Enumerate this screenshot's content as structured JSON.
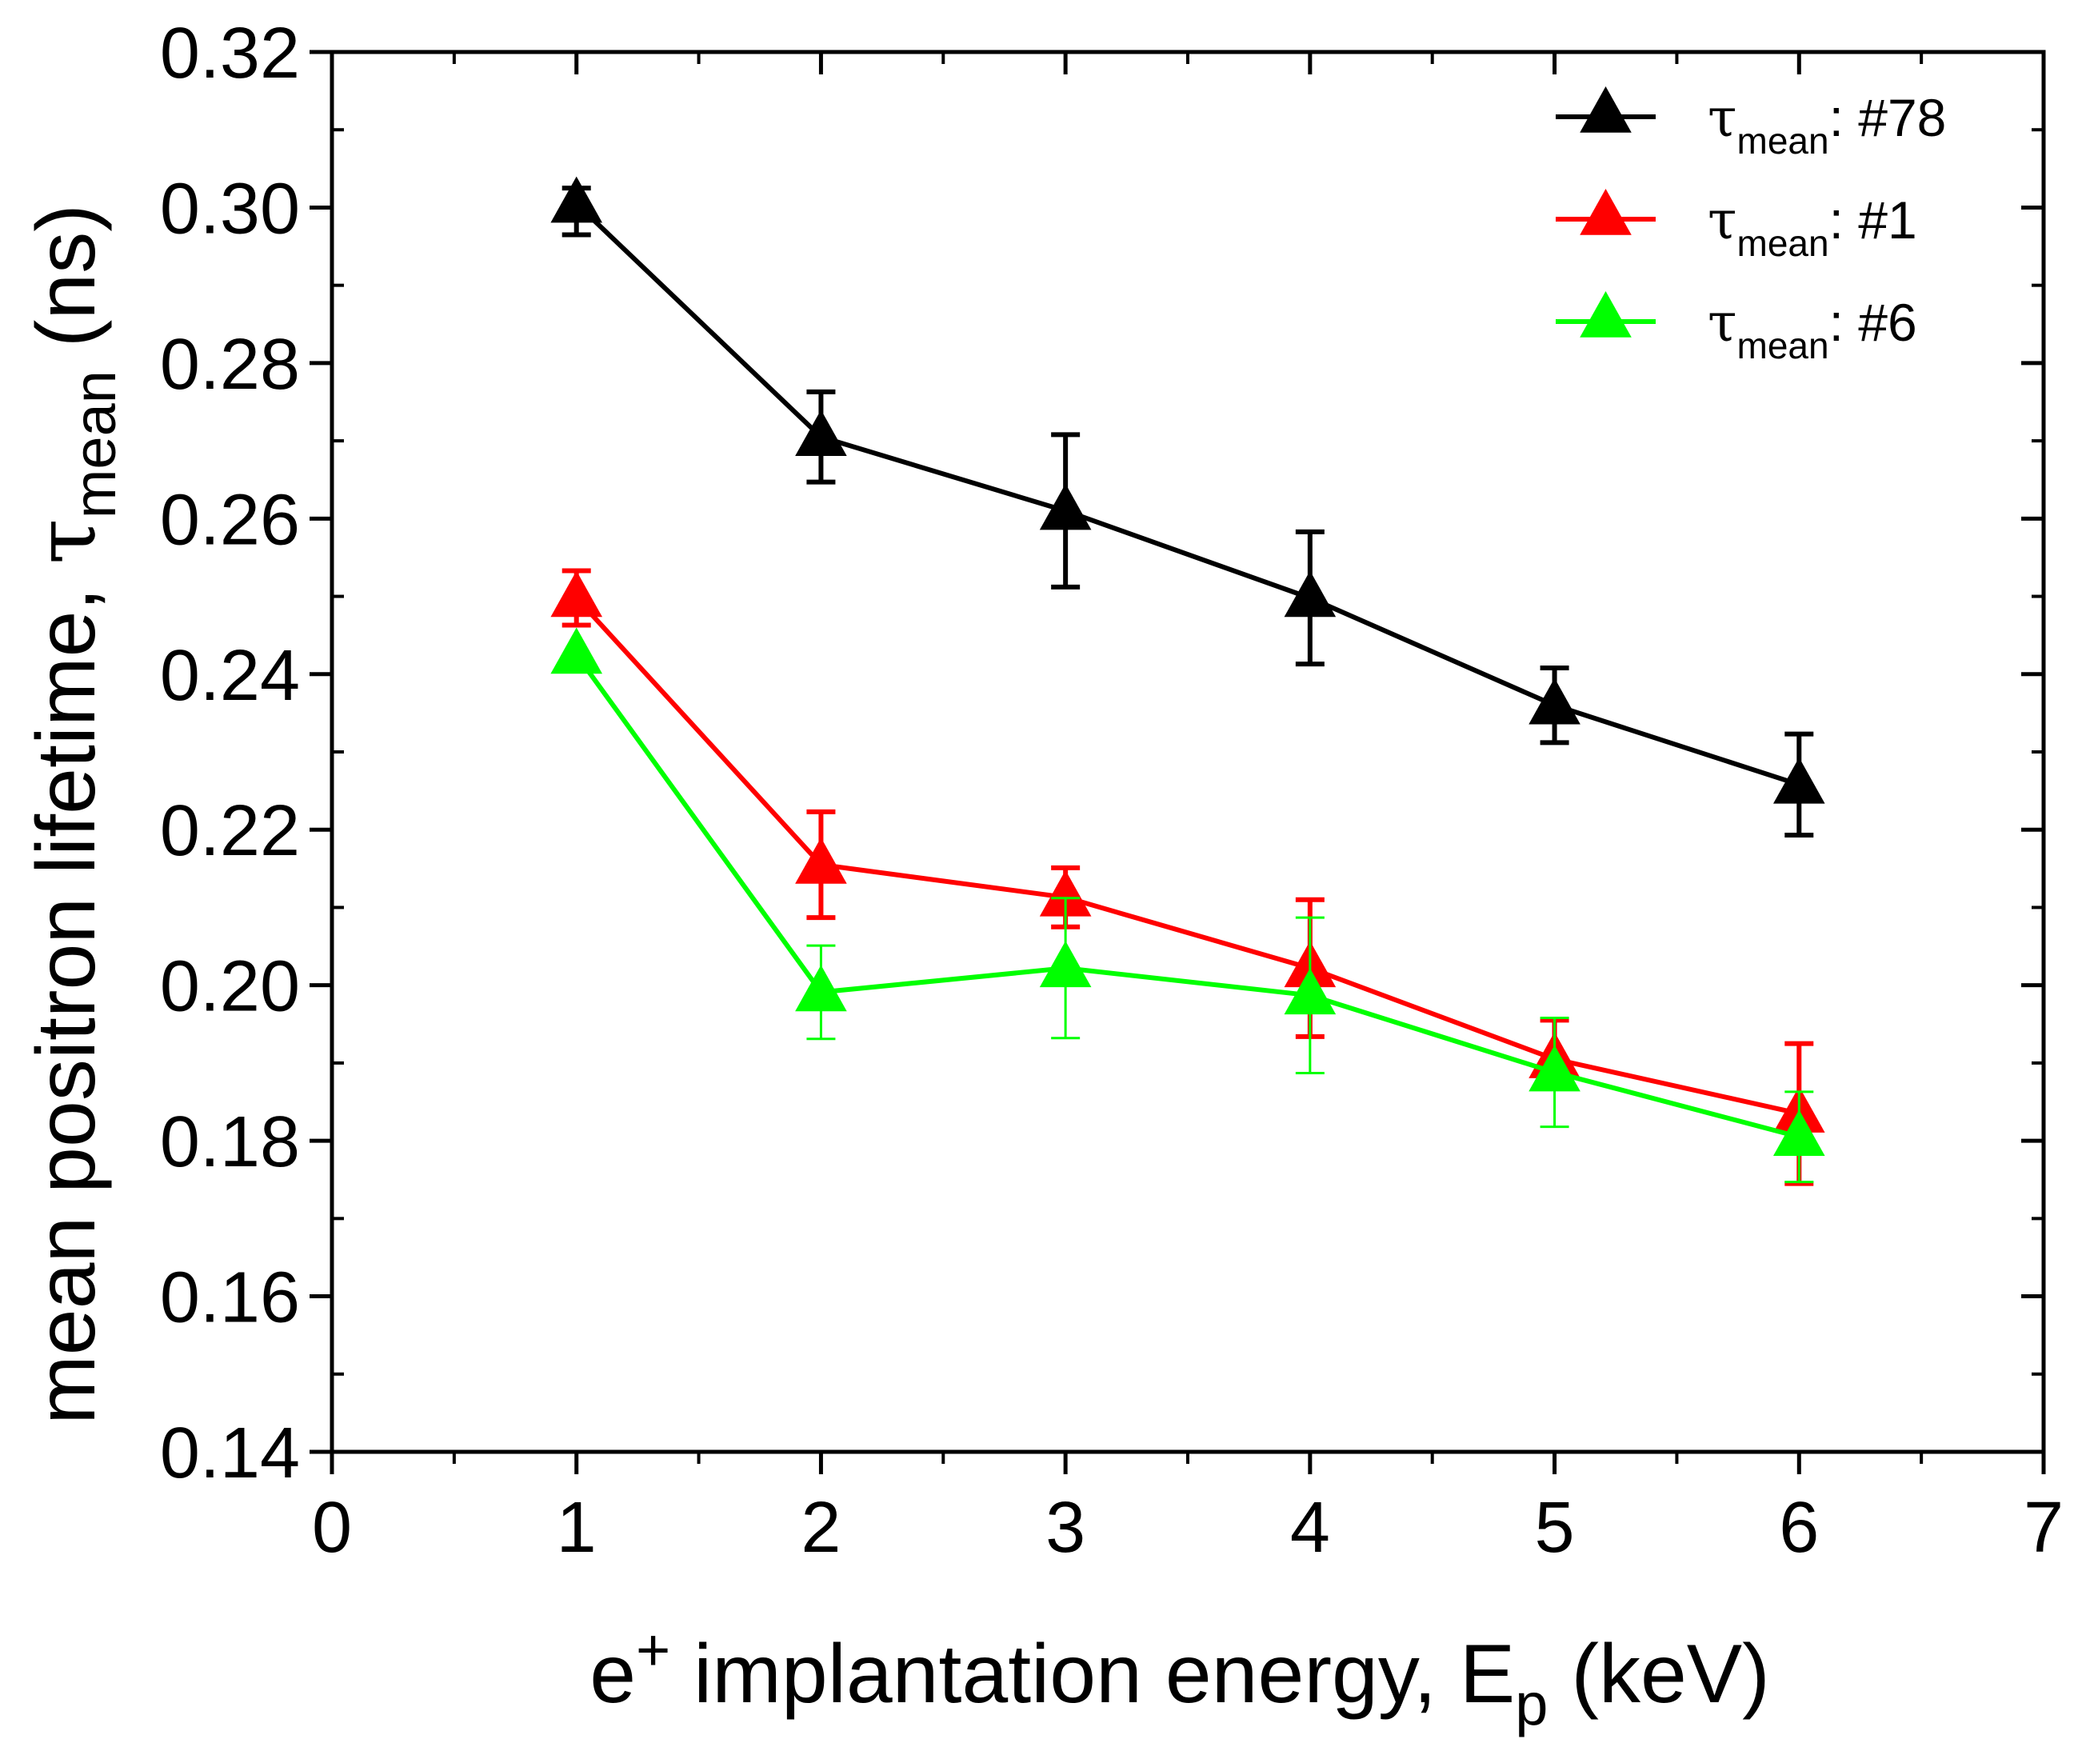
{
  "chart_data": {
    "type": "line",
    "title": "",
    "xlabel": {
      "pre": "e",
      "sup": "+",
      "main": " implantation energy, E",
      "sub": "p",
      "post": " (keV)"
    },
    "ylabel": {
      "main": "mean positron lifetime, ",
      "tau": "τ",
      "sub": "mean",
      "post": " (ns)"
    },
    "xlim": [
      0,
      7
    ],
    "ylim": [
      0.14,
      0.32
    ],
    "xticks": [
      "0",
      "1",
      "2",
      "3",
      "4",
      "5",
      "6",
      "7"
    ],
    "xtick_values": [
      0,
      1,
      2,
      3,
      4,
      5,
      6,
      7
    ],
    "yticks": [
      "0.14",
      "0.16",
      "0.18",
      "0.20",
      "0.22",
      "0.24",
      "0.26",
      "0.28",
      "0.30",
      "0.32"
    ],
    "ytick_values": [
      0.14,
      0.16,
      0.18,
      0.2,
      0.22,
      0.24,
      0.26,
      0.28,
      0.3,
      0.32
    ],
    "legend_position": "top-right",
    "x": [
      1,
      2,
      3,
      4,
      5,
      6
    ],
    "series": [
      {
        "id": "s78",
        "name": "τmean: #78",
        "legend_tau": "τ",
        "legend_sub": "mean",
        "legend_tail": ": #78",
        "color": "#000000",
        "values": [
          0.3005,
          0.2705,
          0.261,
          0.2498,
          0.236,
          0.2258
        ],
        "err_upper": [
          0.002,
          0.0058,
          0.0098,
          0.0085,
          0.0048,
          0.0065
        ],
        "err_lower": [
          0.004,
          0.0058,
          0.0098,
          0.0085,
          0.0048,
          0.0065
        ]
      },
      {
        "id": "s1",
        "name": "τmean: #1",
        "legend_tau": "τ",
        "legend_sub": "mean",
        "legend_tail": ": #1",
        "color": "#ff0000",
        "values": [
          0.2498,
          0.2155,
          0.2113,
          0.2022,
          0.1905,
          0.1835
        ],
        "err_upper": [
          0.0035,
          0.0068,
          0.0038,
          0.0088,
          0.005,
          0.009
        ],
        "err_lower": [
          0.0035,
          0.0068,
          0.0038,
          0.0088,
          0.0038,
          0.009
        ]
      },
      {
        "id": "s6",
        "name": "τmean: #6",
        "legend_tau": "τ",
        "legend_sub": "mean",
        "legend_tail": ": #6",
        "color": "#00ff00",
        "values": [
          0.2425,
          0.1991,
          0.2022,
          0.1987,
          0.1888,
          0.1805
        ],
        "err_upper": [
          0.0,
          0.006,
          0.009,
          0.01,
          0.007,
          0.0058
        ],
        "err_lower": [
          0.0,
          0.006,
          0.009,
          0.01,
          0.007,
          0.0058
        ]
      }
    ]
  }
}
